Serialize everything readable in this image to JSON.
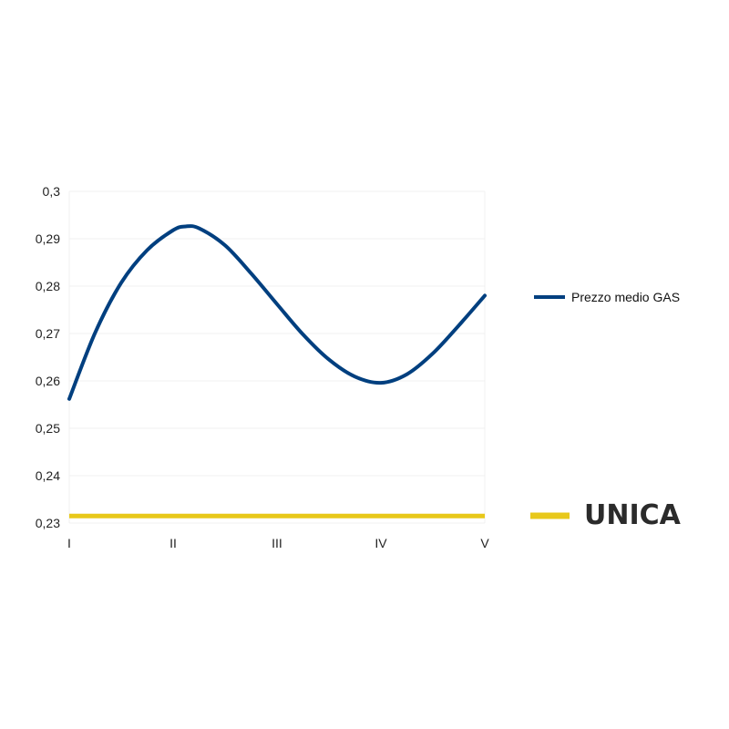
{
  "chart_data": {
    "type": "line",
    "categories": [
      "I",
      "II",
      "III",
      "IV",
      "V"
    ],
    "yticks": [
      "0,3",
      "0,29",
      "0,28",
      "0,27",
      "0,26",
      "0,25",
      "0,24",
      "0,23"
    ],
    "ylim": [
      0.23,
      0.3
    ],
    "grid": true,
    "legend_position": "right",
    "series": [
      {
        "name": "Prezzo medio GAS",
        "color": "#003f7f",
        "x": [
          1,
          1.25,
          1.5,
          1.75,
          2,
          2.12,
          2.25,
          2.5,
          2.75,
          3,
          3.25,
          3.5,
          3.75,
          4,
          4.25,
          4.5,
          4.75,
          5
        ],
        "values": [
          0.2562,
          0.2702,
          0.2807,
          0.2876,
          0.2918,
          0.2926,
          0.2922,
          0.2886,
          0.2827,
          0.2762,
          0.2698,
          0.2645,
          0.2609,
          0.2596,
          0.2614,
          0.2658,
          0.2717,
          0.278
        ]
      }
    ]
  },
  "reference_line": {
    "label": "UNICA",
    "value": 0.2315,
    "color": "#e8c81a"
  }
}
